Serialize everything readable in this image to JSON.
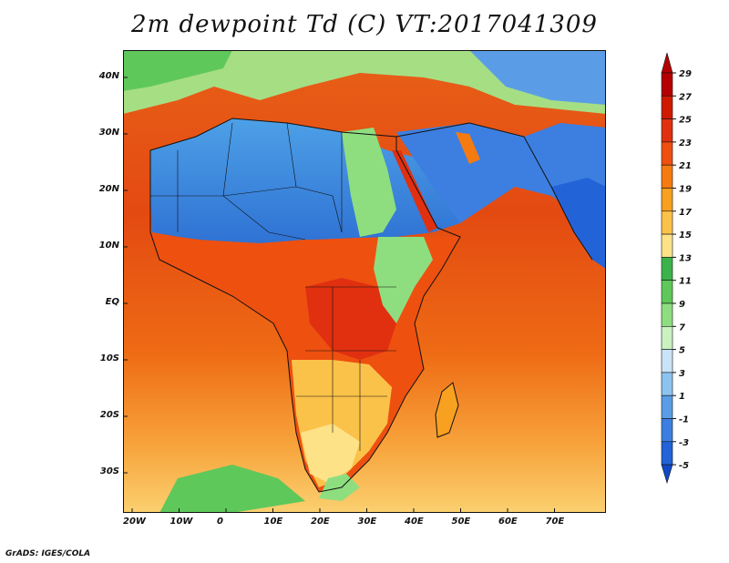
{
  "title": "2m dewpoint Td (C) VT:2017041309",
  "credit": "GrADS: IGES/COLA",
  "map": {
    "lat_labels": [
      "40N",
      "30N",
      "20N",
      "10N",
      "EQ",
      "10S",
      "20S",
      "30S"
    ],
    "lon_labels": [
      "20W",
      "10W",
      "0",
      "10E",
      "20E",
      "30E",
      "40E",
      "50E",
      "60E",
      "70E"
    ]
  },
  "colorbar": {
    "labels": [
      "29",
      "27",
      "25",
      "23",
      "21",
      "19",
      "17",
      "15",
      "13",
      "11",
      "9",
      "7",
      "5",
      "3",
      "1",
      "-1",
      "-3",
      "-5"
    ],
    "colors": [
      "#b40000",
      "#d01a00",
      "#e03010",
      "#ee5010",
      "#f57a10",
      "#f8a020",
      "#fbc24a",
      "#fde288",
      "#3cb34a",
      "#5fc85a",
      "#8ede80",
      "#c9f2c0",
      "#c9e4f8",
      "#8dc3ef",
      "#5a9de6",
      "#3d7fe0",
      "#2263d8",
      "#1048c8"
    ],
    "colors_note": "ordered top to bottom in the colorbar"
  }
}
